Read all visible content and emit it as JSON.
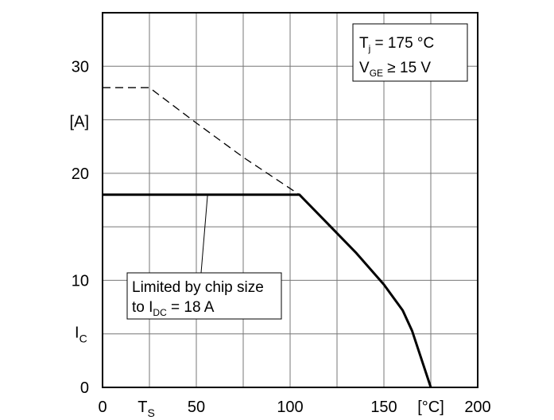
{
  "chart_data": {
    "type": "line",
    "xlim": [
      0,
      200
    ],
    "ylim": [
      0,
      35
    ],
    "grid": true,
    "x_ticks": [
      {
        "value": 0,
        "label": "0"
      },
      {
        "value": 50,
        "label": "50"
      },
      {
        "value": 100,
        "label": "100"
      },
      {
        "value": 150,
        "label": "150"
      },
      {
        "value": 200,
        "label": "200"
      }
    ],
    "x_extra_labels": {
      "ts_main": "T",
      "ts_sub": "S",
      "ts_value": 25,
      "unit": "[°C]",
      "unit_value": 175
    },
    "y_ticks": [
      {
        "value": 0,
        "label": "0"
      },
      {
        "value": 10,
        "label": "10"
      },
      {
        "value": 20,
        "label": "20"
      },
      {
        "value": 30,
        "label": "30"
      }
    ],
    "y_extra_labels": {
      "unit": "[A]",
      "unit_value": 25,
      "ic_main": "I",
      "ic_sub": "C",
      "ic_value": 5
    },
    "series": [
      {
        "style": "dashed",
        "x": [
          0,
          25,
          50,
          75,
          105
        ],
        "y": [
          28,
          28,
          24.7,
          21.5,
          18
        ]
      },
      {
        "style": "solid",
        "x": [
          0,
          105,
          120,
          135,
          150,
          160,
          165,
          175
        ],
        "y": [
          18,
          18,
          15.3,
          12.6,
          9.6,
          7.2,
          5.3,
          0
        ]
      }
    ],
    "conditions": {
      "line1_main": "T",
      "line1_sub": "j",
      "line1_rest": " = 175 °C",
      "line2_main": "V",
      "line2_sub": "GE",
      "line2_rest": " ≥ 15 V"
    },
    "annotation": {
      "line1": "Limited by chip size",
      "line2_main": "to I",
      "line2_sub": "DC",
      "line2_rest": " = 18 A",
      "pointer_x": 56,
      "pointer_y": 18
    }
  }
}
